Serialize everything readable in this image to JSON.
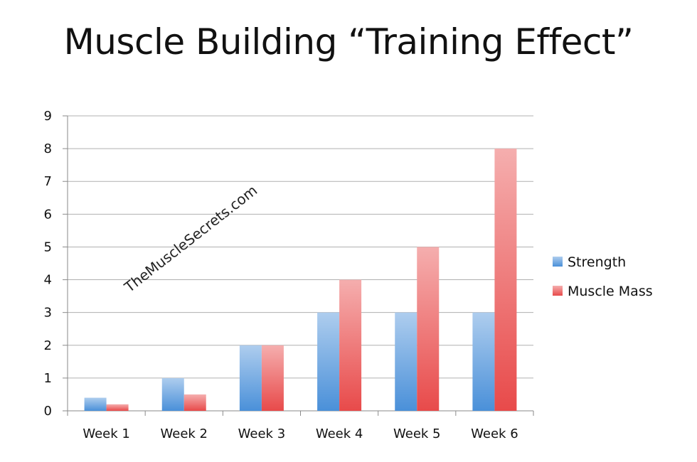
{
  "slide": {
    "title": "Muscle Building “Training Effect”",
    "watermark": "TheMuscleSecrets.com"
  },
  "chart_data": {
    "type": "bar",
    "categories": [
      "Week 1",
      "Week 2",
      "Week 3",
      "Week 4",
      "Week 5",
      "Week 6"
    ],
    "series": [
      {
        "name": "Strength",
        "values": [
          0.4,
          1,
          2,
          3,
          3,
          3
        ],
        "color": "#4a90d9"
      },
      {
        "name": "Muscle Mass",
        "values": [
          0.2,
          0.5,
          2,
          4,
          5,
          8
        ],
        "color": "#e84a4a"
      }
    ],
    "ylim": [
      0,
      9
    ],
    "yticks": [
      "0",
      "1",
      "2",
      "3",
      "4",
      "5",
      "6",
      "7",
      "8",
      "9"
    ],
    "grid": true,
    "legend": "right",
    "xlabel": "",
    "ylabel": ""
  }
}
